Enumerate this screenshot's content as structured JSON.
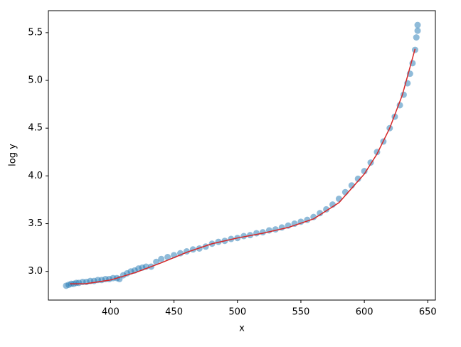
{
  "chart_data": {
    "type": "scatter",
    "xlabel": "x",
    "ylabel": "log y",
    "xlim": [
      351,
      656
    ],
    "ylim": [
      2.7,
      5.73
    ],
    "xticks": [
      400,
      450,
      500,
      550,
      600,
      650
    ],
    "yticks": [
      {
        "value": 3,
        "label": "3.0"
      },
      3.5,
      {
        "value": 4,
        "label": "4.0"
      },
      4.5,
      {
        "value": 5,
        "label": "5.0"
      },
      5.5
    ],
    "series": [
      {
        "mode": "markers",
        "color": "#1f77b4",
        "x": [
          365,
          367,
          369,
          371,
          373,
          375,
          378,
          381,
          384,
          387,
          390,
          393,
          396,
          399,
          402,
          405,
          407,
          410,
          413,
          416,
          419,
          422,
          425,
          428,
          432,
          436,
          440,
          445,
          450,
          455,
          460,
          465,
          470,
          475,
          480,
          485,
          490,
          495,
          500,
          505,
          510,
          515,
          520,
          525,
          530,
          535,
          540,
          545,
          550,
          555,
          560,
          565,
          570,
          575,
          580,
          585,
          590,
          595,
          600,
          605,
          610,
          615,
          620,
          624,
          628,
          631,
          634,
          636,
          638,
          640,
          641,
          642,
          642
        ],
        "values": [
          2.85,
          2.86,
          2.87,
          2.87,
          2.88,
          2.88,
          2.89,
          2.89,
          2.9,
          2.9,
          2.91,
          2.91,
          2.92,
          2.92,
          2.93,
          2.93,
          2.92,
          2.96,
          2.98,
          3.0,
          3.01,
          3.03,
          3.04,
          3.05,
          3.05,
          3.1,
          3.13,
          3.15,
          3.17,
          3.19,
          3.21,
          3.23,
          3.24,
          3.26,
          3.29,
          3.31,
          3.32,
          3.34,
          3.35,
          3.37,
          3.38,
          3.4,
          3.41,
          3.43,
          3.44,
          3.46,
          3.48,
          3.5,
          3.52,
          3.54,
          3.57,
          3.61,
          3.65,
          3.7,
          3.76,
          3.83,
          3.9,
          3.97,
          4.05,
          4.14,
          4.25,
          4.36,
          4.5,
          4.62,
          4.74,
          4.85,
          4.97,
          5.07,
          5.18,
          5.32,
          5.45,
          5.52,
          5.58
        ]
      },
      {
        "mode": "line",
        "color": "#d62728",
        "x": [
          368,
          380,
          400,
          420,
          440,
          460,
          480,
          500,
          520,
          540,
          560,
          580,
          600,
          610,
          620,
          630,
          640
        ],
        "values": [
          2.87,
          2.87,
          2.91,
          2.99,
          3.09,
          3.2,
          3.29,
          3.35,
          3.4,
          3.46,
          3.55,
          3.72,
          4.02,
          4.23,
          4.5,
          4.85,
          5.33
        ]
      }
    ]
  }
}
